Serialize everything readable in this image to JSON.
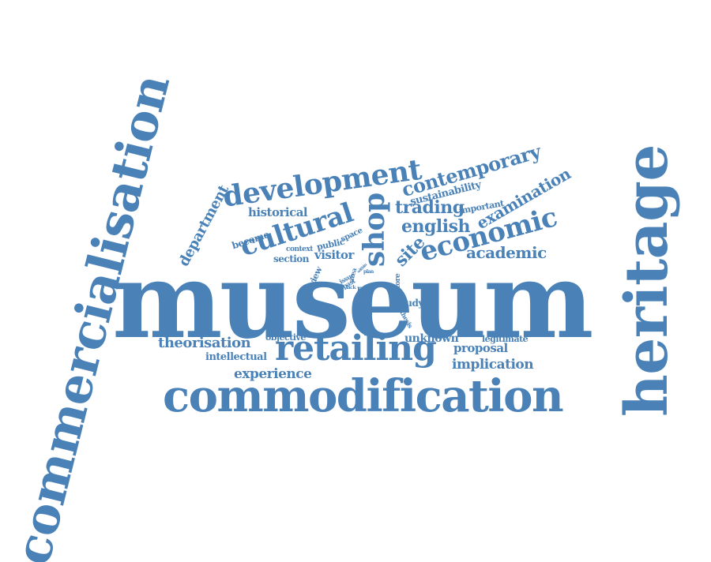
{
  "color": "#4a82b8",
  "words": [
    {
      "text": "museum",
      "weight": 1.0,
      "orientation": "horizontal"
    },
    {
      "text": "commercialisation",
      "weight": 0.75,
      "orientation": "vertical"
    },
    {
      "text": "heritage",
      "weight": 0.72,
      "orientation": "vertical"
    },
    {
      "text": "commodification",
      "weight": 0.5,
      "orientation": "horizontal"
    },
    {
      "text": "retailing",
      "weight": 0.4,
      "orientation": "horizontal"
    },
    {
      "text": "development",
      "weight": 0.34,
      "orientation": "tilted"
    },
    {
      "text": "cultural",
      "weight": 0.33,
      "orientation": "tilted"
    },
    {
      "text": "economic",
      "weight": 0.32,
      "orientation": "tilted"
    },
    {
      "text": "shop",
      "weight": 0.3,
      "orientation": "vertical"
    },
    {
      "text": "contemporary",
      "weight": 0.22,
      "orientation": "tilted"
    },
    {
      "text": "trading",
      "weight": 0.2,
      "orientation": "horizontal"
    },
    {
      "text": "english",
      "weight": 0.2,
      "orientation": "horizontal"
    },
    {
      "text": "examination",
      "weight": 0.18,
      "orientation": "tilted"
    },
    {
      "text": "site",
      "weight": 0.2,
      "orientation": "tilted"
    },
    {
      "text": "academic",
      "weight": 0.17,
      "orientation": "horizontal"
    },
    {
      "text": "department",
      "weight": 0.17,
      "orientation": "tilted"
    },
    {
      "text": "theorisation",
      "weight": 0.15,
      "orientation": "horizontal"
    },
    {
      "text": "implication",
      "weight": 0.14,
      "orientation": "horizontal"
    },
    {
      "text": "experience",
      "weight": 0.14,
      "orientation": "horizontal"
    },
    {
      "text": "historical",
      "weight": 0.12,
      "orientation": "horizontal"
    },
    {
      "text": "sustainability",
      "weight": 0.11,
      "orientation": "tilted"
    },
    {
      "text": "proposal",
      "weight": 0.12,
      "orientation": "horizontal"
    },
    {
      "text": "visitor",
      "weight": 0.12,
      "orientation": "horizontal"
    },
    {
      "text": "unknown",
      "weight": 0.11,
      "orientation": "horizontal"
    },
    {
      "text": "intellectual",
      "weight": 0.1,
      "orientation": "horizontal"
    },
    {
      "text": "section",
      "weight": 0.1,
      "orientation": "horizontal"
    },
    {
      "text": "study",
      "weight": 0.1,
      "orientation": "horizontal"
    },
    {
      "text": "become",
      "weight": 0.09,
      "orientation": "tilted"
    },
    {
      "text": "public",
      "weight": 0.09,
      "orientation": "tilted"
    },
    {
      "text": "important",
      "weight": 0.08,
      "orientation": "tilted"
    },
    {
      "text": "legitimate",
      "weight": 0.08,
      "orientation": "horizontal"
    },
    {
      "text": "objective",
      "weight": 0.08,
      "orientation": "horizontal"
    },
    {
      "text": "review",
      "weight": 0.08,
      "orientation": "tilted"
    },
    {
      "text": "space",
      "weight": 0.07,
      "orientation": "tilted"
    },
    {
      "text": "context",
      "weight": 0.06,
      "orientation": "horizontal"
    },
    {
      "text": "future",
      "weight": 0.07,
      "orientation": "horizontal"
    },
    {
      "text": "role",
      "weight": 0.07,
      "orientation": "horizontal"
    },
    {
      "text": "paper",
      "weight": 0.06,
      "orientation": "vertical"
    },
    {
      "text": "store",
      "weight": 0.06,
      "orientation": "vertical"
    },
    {
      "text": "thesis",
      "weight": 0.05,
      "orientation": "tilted"
    },
    {
      "text": "issue",
      "weight": 0.05,
      "orientation": "tilted"
    },
    {
      "text": "past",
      "weight": 0.05,
      "orientation": "tilted"
    },
    {
      "text": "area",
      "weight": 0.05,
      "orientation": "vertical"
    },
    {
      "text": "lack",
      "weight": 0.04,
      "orientation": "horizontal"
    },
    {
      "text": "plan",
      "weight": 0.04,
      "orientation": "horizontal"
    },
    {
      "text": "within",
      "weight": 0.04,
      "orientation": "tilted"
    }
  ]
}
